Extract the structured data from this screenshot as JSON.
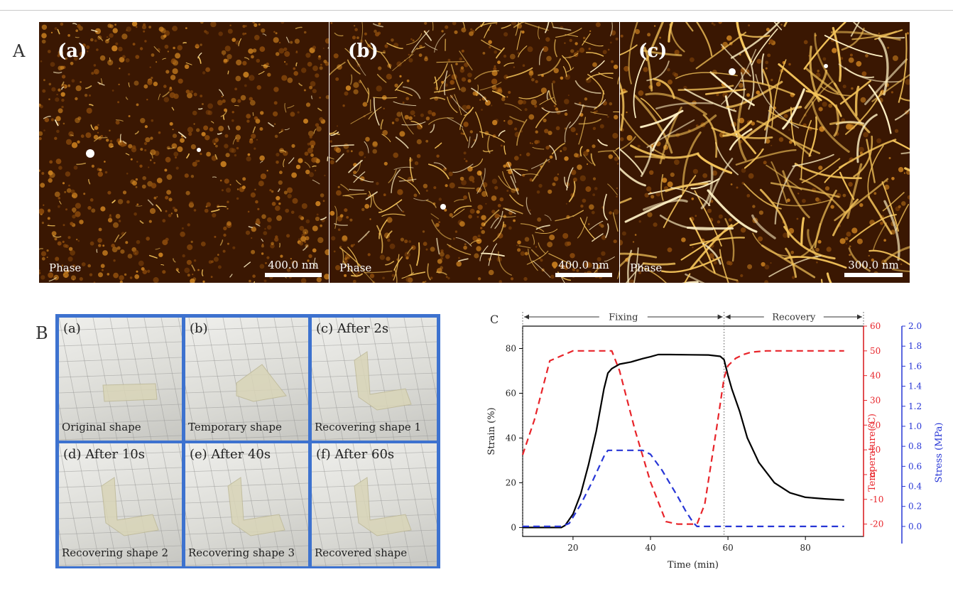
{
  "panel_labels": {
    "A": "A",
    "B": "B",
    "C": "C"
  },
  "afm_images": [
    {
      "label": "(a)",
      "mode": "Phase",
      "scale": "400.0 nm"
    },
    {
      "label": "(b)",
      "mode": "Phase",
      "scale": "400.0 nm"
    },
    {
      "label": "(c)",
      "mode": "Phase",
      "scale": "300.0 nm"
    }
  ],
  "shape_photos": [
    {
      "label": "(a)",
      "caption": "Original shape"
    },
    {
      "label": "(b)",
      "caption": "Temporary shape"
    },
    {
      "label": "(c) After 2s",
      "caption": "Recovering shape 1"
    },
    {
      "label": "(d) After 10s",
      "caption": "Recovering shape 2"
    },
    {
      "label": "(e) After 40s",
      "caption": "Recovering shape 3"
    },
    {
      "label": "(f) After 60s",
      "caption": "Recovered shape"
    }
  ],
  "colors": {
    "afm_bg": "#2a1000",
    "afm_fiber": "#f3c35a",
    "grid_border": "#3d72cf",
    "strain": "#000000",
    "temperature": "#e8242a",
    "stress": "#2736d6"
  },
  "chart_data": {
    "type": "line",
    "title": "",
    "phase_labels": [
      "Fixing",
      "Recovery"
    ],
    "phase_bounds": [
      7,
      59,
      95
    ],
    "xlabel": "Time (min)",
    "xlim": [
      7,
      95
    ],
    "xticks": [
      20,
      40,
      60,
      80
    ],
    "axes": {
      "strain": {
        "label": "Strain (%)",
        "lim": [
          -4,
          90
        ],
        "ticks": [
          0,
          20,
          40,
          60,
          80
        ]
      },
      "temperature": {
        "label": "Temperature(℃)",
        "lim": [
          -25,
          60
        ],
        "ticks": [
          -20,
          -10,
          0,
          10,
          20,
          30,
          40,
          50,
          60
        ]
      },
      "stress": {
        "label": "Stress (MPa)",
        "lim": [
          -0.1,
          2.0
        ],
        "ticks": [
          0.0,
          0.2,
          0.4,
          0.6,
          0.8,
          1.0,
          1.2,
          1.4,
          1.6,
          1.8,
          2.0
        ]
      }
    },
    "series": [
      {
        "axis": "strain",
        "style": "solid",
        "x": [
          7,
          17,
          18,
          20,
          22,
          24,
          26,
          28,
          29,
          30,
          32,
          35,
          38,
          40,
          42,
          45,
          50,
          55,
          58,
          59,
          60,
          61,
          63,
          65,
          68,
          72,
          76,
          80,
          85,
          90
        ],
        "y": [
          0,
          0,
          1,
          6,
          15,
          28,
          43,
          62,
          69,
          71,
          73,
          74,
          75.5,
          76.3,
          77.3,
          77.3,
          77.2,
          77.1,
          76.5,
          75,
          68,
          62,
          52,
          40,
          29,
          20,
          15.5,
          13.5,
          12.8,
          12.3
        ]
      },
      {
        "axis": "temperature",
        "style": "dashed",
        "x": [
          7,
          10,
          14,
          17,
          20,
          30,
          32,
          36,
          40,
          44,
          47,
          52,
          54,
          57,
          59,
          60,
          62,
          64,
          66,
          70,
          80,
          90
        ],
        "y": [
          8,
          22,
          46,
          48,
          50,
          50,
          42,
          18,
          -3,
          -19,
          -20,
          -20,
          -12,
          18,
          39,
          44,
          47,
          48.5,
          49.5,
          50,
          50,
          50
        ]
      },
      {
        "axis": "stress",
        "style": "dashed",
        "x": [
          7,
          17,
          19,
          22,
          25,
          28,
          29,
          35,
          38,
          40,
          43,
          47,
          49,
          51,
          52,
          60,
          70,
          90
        ],
        "y": [
          0,
          0,
          0.03,
          0.22,
          0.45,
          0.7,
          0.76,
          0.76,
          0.76,
          0.72,
          0.56,
          0.3,
          0.16,
          0.04,
          0,
          0,
          0,
          0
        ]
      }
    ]
  }
}
